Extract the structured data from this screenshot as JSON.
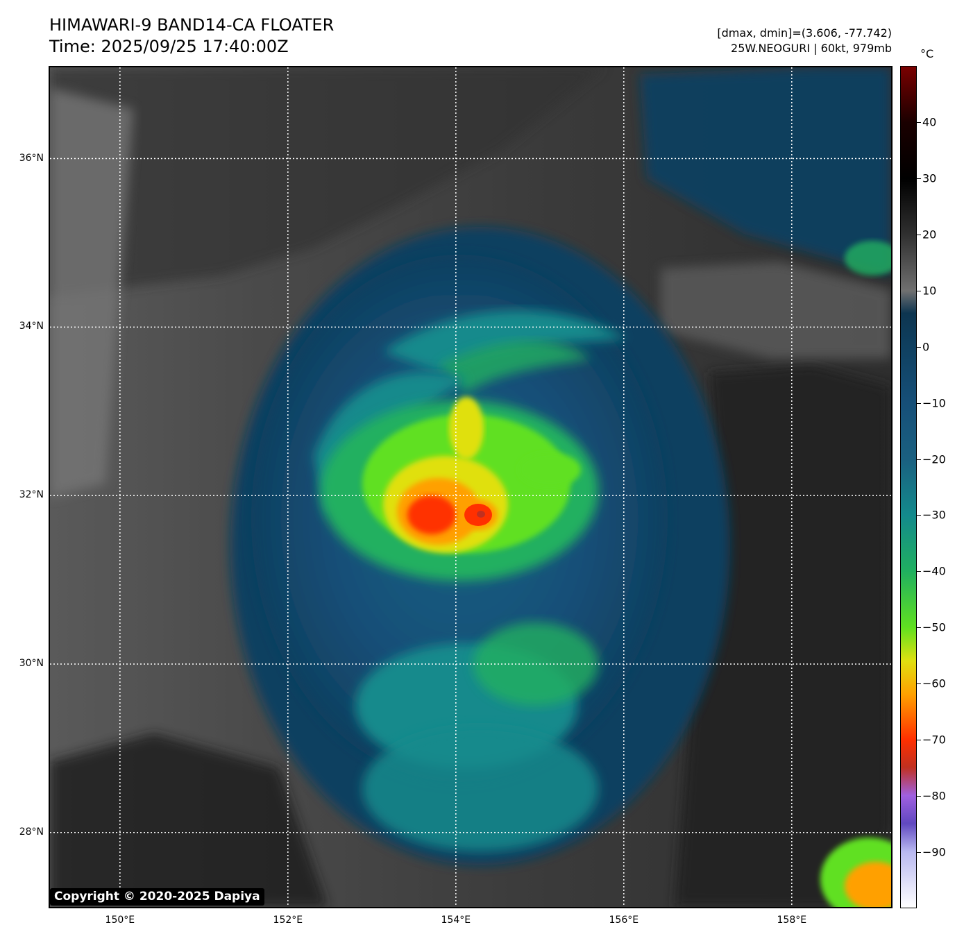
{
  "title": {
    "line1": "HIMAWARI-9 BAND14-CA FLOATER",
    "line2": "Time: 2025/09/25 17:40:00Z"
  },
  "info": {
    "range": "[dmax, dmin]=(3.606, -77.742)",
    "storm": "25W.NEOGURI | 60kt, 979mb"
  },
  "copyright": "Copyright © 2020-2025 Dapiya",
  "map": {
    "lon_range": [
      149.15,
      159.2
    ],
    "lat_range": [
      27.1,
      37.1
    ],
    "lat_ticks": [
      {
        "value": 36,
        "label": "36°N"
      },
      {
        "value": 34,
        "label": "34°N"
      },
      {
        "value": 32,
        "label": "32°N"
      },
      {
        "value": 30,
        "label": "30°N"
      },
      {
        "value": 28,
        "label": "28°N"
      }
    ],
    "lon_ticks": [
      {
        "value": 150,
        "label": "150°E"
      },
      {
        "value": 152,
        "label": "152°E"
      },
      {
        "value": 154,
        "label": "154°E"
      },
      {
        "value": 156,
        "label": "156°E"
      },
      {
        "value": 158,
        "label": "158°E"
      }
    ],
    "grid": "dotted white"
  },
  "colorbar": {
    "unit": "°C",
    "range": [
      -100,
      50
    ],
    "ticks": [
      40,
      30,
      20,
      10,
      0,
      -10,
      -20,
      -30,
      -40,
      -50,
      -60,
      -70,
      -80,
      -90
    ],
    "tick_labels": [
      "40",
      "30",
      "20",
      "10",
      "0",
      "−10",
      "−20",
      "−30",
      "−40",
      "−50",
      "−60",
      "−70",
      "−80",
      "−90"
    ],
    "stops": [
      {
        "t": 50,
        "color": "#7a0000"
      },
      {
        "t": 40,
        "color": "#1a0000"
      },
      {
        "t": 30,
        "color": "#000000"
      },
      {
        "t": 20,
        "color": "#303030"
      },
      {
        "t": 10,
        "color": "#707070"
      },
      {
        "t": 6,
        "color": "#0d3550"
      },
      {
        "t": 0,
        "color": "#0f4060"
      },
      {
        "t": -10,
        "color": "#164f78"
      },
      {
        "t": -20,
        "color": "#1a6080"
      },
      {
        "t": -30,
        "color": "#138a8c"
      },
      {
        "t": -40,
        "color": "#20b060"
      },
      {
        "t": -50,
        "color": "#60e020"
      },
      {
        "t": -56,
        "color": "#e0e010"
      },
      {
        "t": -62,
        "color": "#ffa000"
      },
      {
        "t": -70,
        "color": "#ff3000"
      },
      {
        "t": -75,
        "color": "#c03020"
      },
      {
        "t": -80,
        "color": "#a060e0"
      },
      {
        "t": -85,
        "color": "#6048c0"
      },
      {
        "t": -90,
        "color": "#b8b8f0"
      },
      {
        "t": -100,
        "color": "#ffffff"
      }
    ]
  }
}
